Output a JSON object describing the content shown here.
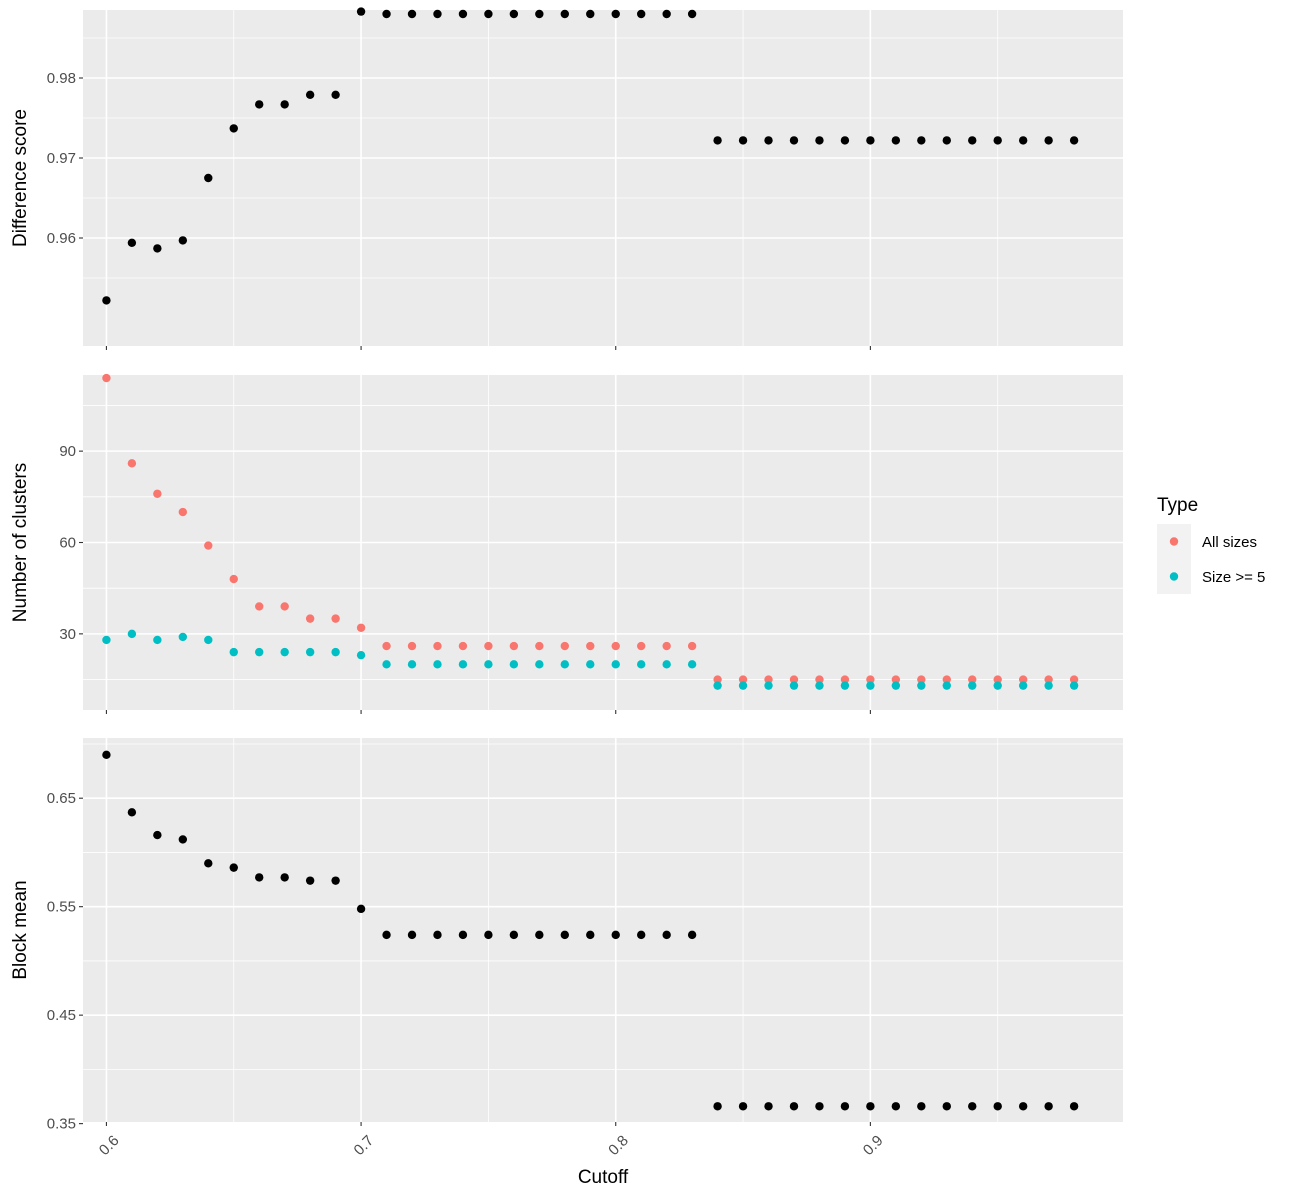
{
  "chart_data": [
    {
      "type": "scatter",
      "ylabel": "Difference score",
      "ylim": [
        0.9465,
        0.9885
      ],
      "yticks": [
        0.96,
        0.97,
        0.98
      ],
      "ytick_labels": [
        "0.96",
        "0.97",
        "0.98"
      ],
      "x": [
        0.6,
        0.61,
        0.62,
        0.63,
        0.64,
        0.65,
        0.66,
        0.67,
        0.68,
        0.69,
        0.7,
        0.71,
        0.72,
        0.73,
        0.74,
        0.75,
        0.76,
        0.77,
        0.78,
        0.79,
        0.8,
        0.81,
        0.82,
        0.83,
        0.84,
        0.85,
        0.86,
        0.87,
        0.88,
        0.89,
        0.9,
        0.91,
        0.92,
        0.93,
        0.94,
        0.95,
        0.96,
        0.97,
        0.98
      ],
      "series": [
        {
          "color": "#000000",
          "values": [
            0.9522,
            0.9594,
            0.9587,
            0.9597,
            0.9675,
            0.9737,
            0.9767,
            0.9767,
            0.9779,
            0.9779,
            0.9883,
            0.988,
            0.988,
            0.988,
            0.988,
            0.988,
            0.988,
            0.988,
            0.988,
            0.988,
            0.988,
            0.988,
            0.988,
            0.988,
            0.9722,
            0.9722,
            0.9722,
            0.9722,
            0.9722,
            0.9722,
            0.9722,
            0.9722,
            0.9722,
            0.9722,
            0.9722,
            0.9722,
            0.9722,
            0.9722,
            0.9722
          ]
        }
      ]
    },
    {
      "type": "scatter",
      "ylabel": "Number of clusters",
      "ylim": [
        5,
        115
      ],
      "yticks": [
        30,
        60,
        90
      ],
      "ytick_labels": [
        "30",
        "60",
        "90"
      ],
      "x": [
        0.6,
        0.61,
        0.62,
        0.63,
        0.64,
        0.65,
        0.66,
        0.67,
        0.68,
        0.69,
        0.7,
        0.71,
        0.72,
        0.73,
        0.74,
        0.75,
        0.76,
        0.77,
        0.78,
        0.79,
        0.8,
        0.81,
        0.82,
        0.83,
        0.84,
        0.85,
        0.86,
        0.87,
        0.88,
        0.89,
        0.9,
        0.91,
        0.92,
        0.93,
        0.94,
        0.95,
        0.96,
        0.97,
        0.98
      ],
      "series": [
        {
          "name": "All sizes",
          "color": "#F8766D",
          "values": [
            114,
            86,
            76,
            70,
            59,
            48,
            39,
            39,
            35,
            35,
            32,
            26,
            26,
            26,
            26,
            26,
            26,
            26,
            26,
            26,
            26,
            26,
            26,
            26,
            15,
            15,
            15,
            15,
            15,
            15,
            15,
            15,
            15,
            15,
            15,
            15,
            15,
            15,
            15
          ]
        },
        {
          "name": "Size >= 5",
          "color": "#00BFC4",
          "values": [
            28,
            30,
            28,
            29,
            28,
            24,
            24,
            24,
            24,
            24,
            23,
            20,
            20,
            20,
            20,
            20,
            20,
            20,
            20,
            20,
            20,
            20,
            20,
            20,
            13,
            13,
            13,
            13,
            13,
            13,
            13,
            13,
            13,
            13,
            13,
            13,
            13,
            13,
            13
          ]
        }
      ]
    },
    {
      "type": "scatter",
      "ylabel": "Block mean",
      "xlabel": "Cutoff",
      "ylim": [
        0.3515,
        0.7055
      ],
      "yticks": [
        0.35,
        0.45,
        0.55,
        0.65
      ],
      "ytick_labels": [
        "0.35",
        "0.45",
        "0.55",
        "0.65"
      ],
      "xlim": [
        0.5908,
        0.9992
      ],
      "xticks": [
        0.6,
        0.7,
        0.8,
        0.9
      ],
      "xtick_labels": [
        "0.6",
        "0.7",
        "0.8",
        "0.9"
      ],
      "x": [
        0.6,
        0.61,
        0.62,
        0.63,
        0.64,
        0.65,
        0.66,
        0.67,
        0.68,
        0.69,
        0.7,
        0.71,
        0.72,
        0.73,
        0.74,
        0.75,
        0.76,
        0.77,
        0.78,
        0.79,
        0.8,
        0.81,
        0.82,
        0.83,
        0.84,
        0.85,
        0.86,
        0.87,
        0.88,
        0.89,
        0.9,
        0.91,
        0.92,
        0.93,
        0.94,
        0.95,
        0.96,
        0.97,
        0.98
      ],
      "series": [
        {
          "color": "#000000",
          "values": [
            0.69,
            0.637,
            0.616,
            0.612,
            0.59,
            0.586,
            0.577,
            0.577,
            0.574,
            0.574,
            0.548,
            0.524,
            0.524,
            0.524,
            0.524,
            0.524,
            0.524,
            0.524,
            0.524,
            0.524,
            0.524,
            0.524,
            0.524,
            0.524,
            0.366,
            0.366,
            0.366,
            0.366,
            0.366,
            0.366,
            0.366,
            0.366,
            0.366,
            0.366,
            0.366,
            0.366,
            0.366,
            0.366,
            0.366
          ]
        }
      ]
    }
  ],
  "legend": {
    "title": "Type",
    "placement": "right",
    "items": [
      {
        "label": "All sizes",
        "color": "#F8766D"
      },
      {
        "label": "Size >= 5",
        "color": "#00BFC4"
      }
    ]
  }
}
